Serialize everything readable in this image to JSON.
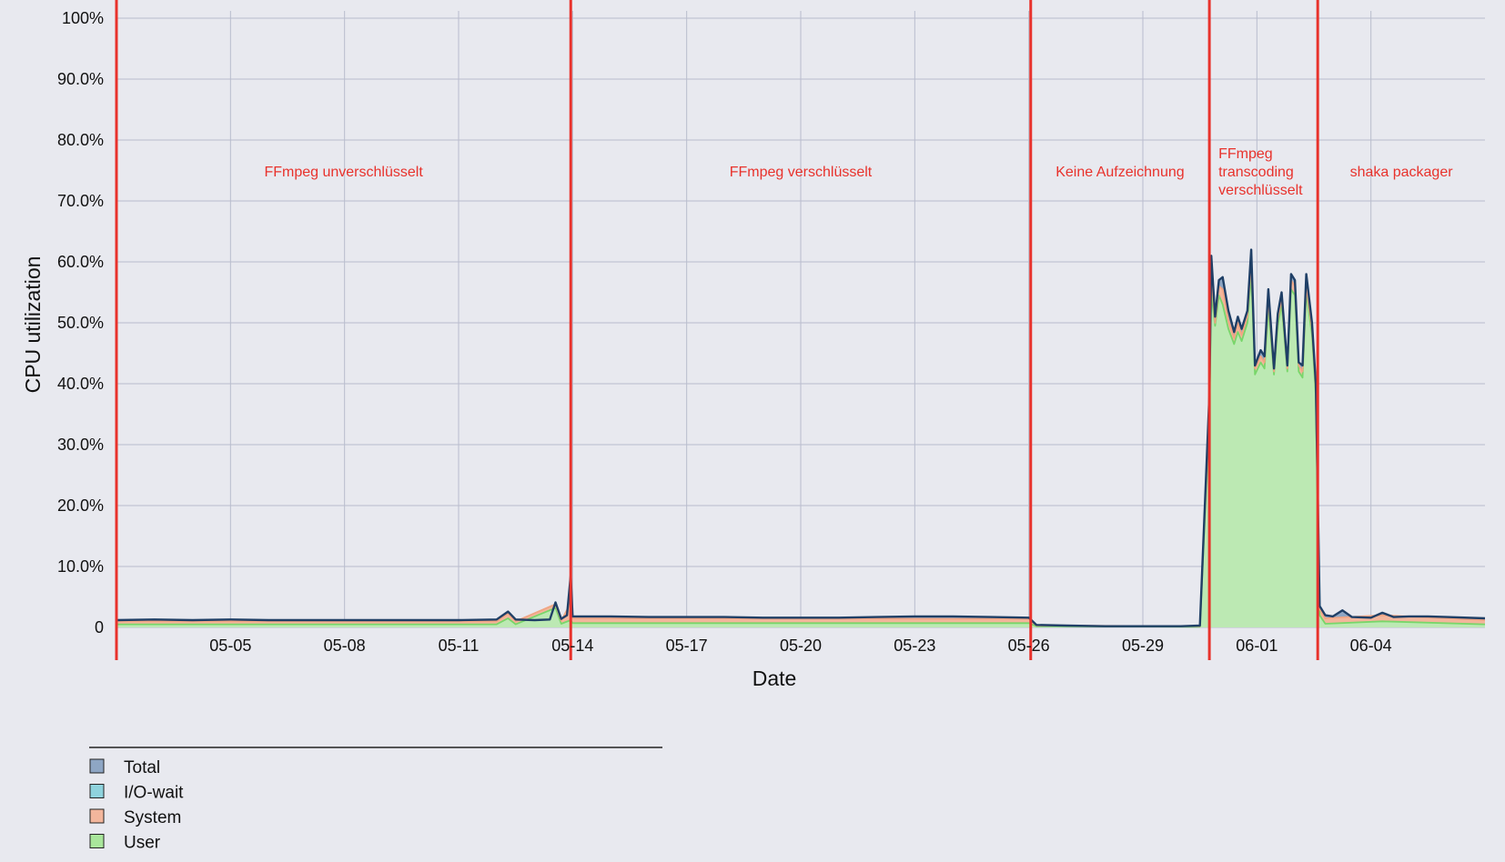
{
  "chart_data": {
    "type": "area",
    "title": "",
    "xlabel": "Date",
    "ylabel": "CPU utilization",
    "x_range": [
      "2023-05-02",
      "2023-06-07"
    ],
    "y_range": [
      0,
      100
    ],
    "y_ticks": [
      {
        "value": 0,
        "label": "0"
      },
      {
        "value": 10,
        "label": "10.0%"
      },
      {
        "value": 20,
        "label": "20.0%"
      },
      {
        "value": 30,
        "label": "30.0%"
      },
      {
        "value": 40,
        "label": "40.0%"
      },
      {
        "value": 50,
        "label": "50.0%"
      },
      {
        "value": 60,
        "label": "60.0%"
      },
      {
        "value": 70,
        "label": "70.0%"
      },
      {
        "value": 80,
        "label": "80.0%"
      },
      {
        "value": 90,
        "label": "90.0%"
      },
      {
        "value": 100,
        "label": "100%"
      }
    ],
    "x_ticks": [
      {
        "date": "2023-05-05",
        "label": "05-05"
      },
      {
        "date": "2023-05-08",
        "label": "05-08"
      },
      {
        "date": "2023-05-11",
        "label": "05-11"
      },
      {
        "date": "2023-05-14",
        "label": "05-14"
      },
      {
        "date": "2023-05-17",
        "label": "05-17"
      },
      {
        "date": "2023-05-20",
        "label": "05-20"
      },
      {
        "date": "2023-05-23",
        "label": "05-23"
      },
      {
        "date": "2023-05-26",
        "label": "05-26"
      },
      {
        "date": "2023-05-29",
        "label": "05-29"
      },
      {
        "date": "2023-06-01",
        "label": "06-01"
      },
      {
        "date": "2023-06-04",
        "label": "06-04"
      }
    ],
    "grid": true,
    "legend_position": "bottom-left",
    "series": [
      {
        "name": "Total",
        "color": "#1f3f66",
        "swatch": "#8ea6c4",
        "points": [
          [
            "2023-05-02",
            1.2
          ],
          [
            "2023-05-03",
            1.3
          ],
          [
            "2023-05-04",
            1.2
          ],
          [
            "2023-05-05",
            1.3
          ],
          [
            "2023-05-06",
            1.2
          ],
          [
            "2023-05-07",
            1.2
          ],
          [
            "2023-05-08",
            1.2
          ],
          [
            "2023-05-09",
            1.2
          ],
          [
            "2023-05-10",
            1.2
          ],
          [
            "2023-05-11",
            1.2
          ],
          [
            "2023-05-12",
            1.3
          ],
          [
            "2023-05-12.3",
            2.6
          ],
          [
            "2023-05-12.5",
            1.3
          ],
          [
            "2023-05-13",
            1.2
          ],
          [
            "2023-05-13.4",
            1.3
          ],
          [
            "2023-05-13.55",
            4.1
          ],
          [
            "2023-05-13.7",
            1.4
          ],
          [
            "2023-05-13.85",
            2.0
          ],
          [
            "2023-05-13.95",
            8.5
          ],
          [
            "2023-05-14",
            1.8
          ],
          [
            "2023-05-15",
            1.8
          ],
          [
            "2023-05-16",
            1.7
          ],
          [
            "2023-05-17",
            1.7
          ],
          [
            "2023-05-18",
            1.7
          ],
          [
            "2023-05-19",
            1.6
          ],
          [
            "2023-05-20",
            1.6
          ],
          [
            "2023-05-21",
            1.6
          ],
          [
            "2023-05-22",
            1.7
          ],
          [
            "2023-05-23",
            1.8
          ],
          [
            "2023-05-24",
            1.8
          ],
          [
            "2023-05-25",
            1.7
          ],
          [
            "2023-05-26",
            1.6
          ],
          [
            "2023-05-26.2",
            0.4
          ],
          [
            "2023-05-27",
            0.3
          ],
          [
            "2023-05-28",
            0.2
          ],
          [
            "2023-05-29",
            0.2
          ],
          [
            "2023-05-30",
            0.2
          ],
          [
            "2023-05-30.5",
            0.3
          ],
          [
            "2023-05-30.75",
            38.0
          ],
          [
            "2023-05-30.8",
            61.0
          ],
          [
            "2023-05-30.9",
            51.0
          ],
          [
            "2023-05-31",
            57.0
          ],
          [
            "2023-05-31.1",
            57.5
          ],
          [
            "2023-05-31.25",
            52.0
          ],
          [
            "2023-05-31.4",
            48.5
          ],
          [
            "2023-05-31.5",
            51.0
          ],
          [
            "2023-05-31.6",
            49.0
          ],
          [
            "2023-05-31.75",
            52.0
          ],
          [
            "2023-05-31.85",
            62.0
          ],
          [
            "2023-05-31.95",
            43.0
          ],
          [
            "2023-06-01.1",
            45.5
          ],
          [
            "2023-06-01.2",
            44.5
          ],
          [
            "2023-06-01.3",
            55.5
          ],
          [
            "2023-06-01.45",
            42.5
          ],
          [
            "2023-06-01.55",
            51.5
          ],
          [
            "2023-06-01.65",
            55.0
          ],
          [
            "2023-06-01.8",
            43.0
          ],
          [
            "2023-06-01.9",
            58.0
          ],
          [
            "2023-06-02",
            57.0
          ],
          [
            "2023-06-02.1",
            43.5
          ],
          [
            "2023-06-02.2",
            43.0
          ],
          [
            "2023-06-02.3",
            58.0
          ],
          [
            "2023-06-02.45",
            50.0
          ],
          [
            "2023-06-02.55",
            40.0
          ],
          [
            "2023-06-02.6",
            22.0
          ],
          [
            "2023-06-02.65",
            3.5
          ],
          [
            "2023-06-02.8",
            2.0
          ],
          [
            "2023-06-03",
            1.8
          ],
          [
            "2023-06-03.25",
            2.8
          ],
          [
            "2023-06-03.5",
            1.7
          ],
          [
            "2023-06-04",
            1.6
          ],
          [
            "2023-06-04.3",
            2.4
          ],
          [
            "2023-06-04.6",
            1.7
          ],
          [
            "2023-06-05",
            1.8
          ],
          [
            "2023-06-05.5",
            1.8
          ],
          [
            "2023-06-06",
            1.7
          ],
          [
            "2023-06-07",
            1.5
          ]
        ]
      },
      {
        "name": "I/O-wait",
        "color": "#66c8d6",
        "swatch": "#8fd3dd",
        "points": []
      },
      {
        "name": "System",
        "color": "#f0a583",
        "swatch": "#f3b69c",
        "points": [
          [
            "2023-05-02",
            1.0
          ],
          [
            "2023-05-12",
            1.0
          ],
          [
            "2023-05-12.3",
            2.3
          ],
          [
            "2023-05-12.5",
            1.0
          ],
          [
            "2023-05-13.55",
            3.8
          ],
          [
            "2023-05-13.7",
            1.1
          ],
          [
            "2023-05-13.95",
            4.0
          ],
          [
            "2023-05-14",
            1.5
          ],
          [
            "2023-05-26",
            1.4
          ],
          [
            "2023-05-26.2",
            0.3
          ],
          [
            "2023-05-30.5",
            0.2
          ],
          [
            "2023-05-30.75",
            36.0
          ],
          [
            "2023-05-30.8",
            58.0
          ],
          [
            "2023-05-30.9",
            50.0
          ],
          [
            "2023-05-31",
            56.0
          ],
          [
            "2023-05-31.1",
            55.5
          ],
          [
            "2023-05-31.25",
            50.5
          ],
          [
            "2023-05-31.4",
            47.5
          ],
          [
            "2023-05-31.5",
            50.0
          ],
          [
            "2023-05-31.6",
            48.0
          ],
          [
            "2023-05-31.75",
            51.0
          ],
          [
            "2023-05-31.85",
            60.0
          ],
          [
            "2023-05-31.95",
            42.5
          ],
          [
            "2023-06-01.1",
            44.5
          ],
          [
            "2023-06-01.2",
            43.5
          ],
          [
            "2023-06-01.3",
            54.0
          ],
          [
            "2023-06-01.45",
            42.0
          ],
          [
            "2023-06-01.55",
            50.5
          ],
          [
            "2023-06-01.65",
            54.0
          ],
          [
            "2023-06-01.8",
            42.5
          ],
          [
            "2023-06-01.9",
            57.0
          ],
          [
            "2023-06-02",
            56.0
          ],
          [
            "2023-06-02.1",
            43.0
          ],
          [
            "2023-06-02.2",
            42.0
          ],
          [
            "2023-06-02.3",
            56.0
          ],
          [
            "2023-06-02.45",
            49.0
          ],
          [
            "2023-06-02.55",
            39.0
          ],
          [
            "2023-06-02.6",
            20.0
          ],
          [
            "2023-06-02.65",
            3.0
          ],
          [
            "2023-06-02.8",
            1.5
          ],
          [
            "2023-06-04.3",
            2.0
          ],
          [
            "2023-06-07",
            1.2
          ]
        ]
      },
      {
        "name": "User",
        "color": "#78d66a",
        "fill": "#bce9b3",
        "swatch": "#a9e69b",
        "points": [
          [
            "2023-05-02",
            0.5
          ],
          [
            "2023-05-12",
            0.5
          ],
          [
            "2023-05-12.3",
            1.5
          ],
          [
            "2023-05-12.5",
            0.5
          ],
          [
            "2023-05-13.55",
            3.2
          ],
          [
            "2023-05-13.7",
            0.6
          ],
          [
            "2023-05-13.95",
            1.2
          ],
          [
            "2023-05-14",
            0.7
          ],
          [
            "2023-05-26",
            0.7
          ],
          [
            "2023-05-26.2",
            0.2
          ],
          [
            "2023-05-30.5",
            0.1
          ],
          [
            "2023-05-30.75",
            34.0
          ],
          [
            "2023-05-30.8",
            55.0
          ],
          [
            "2023-05-30.9",
            49.5
          ],
          [
            "2023-05-31",
            54.5
          ],
          [
            "2023-05-31.1",
            53.0
          ],
          [
            "2023-05-31.25",
            49.0
          ],
          [
            "2023-05-31.4",
            46.5
          ],
          [
            "2023-05-31.5",
            48.5
          ],
          [
            "2023-05-31.6",
            47.0
          ],
          [
            "2023-05-31.75",
            50.0
          ],
          [
            "2023-05-31.85",
            58.0
          ],
          [
            "2023-05-31.95",
            41.5
          ],
          [
            "2023-06-01.1",
            43.5
          ],
          [
            "2023-06-01.2",
            42.5
          ],
          [
            "2023-06-01.3",
            52.5
          ],
          [
            "2023-06-01.45",
            41.5
          ],
          [
            "2023-06-01.55",
            49.5
          ],
          [
            "2023-06-01.65",
            53.0
          ],
          [
            "2023-06-01.8",
            42.0
          ],
          [
            "2023-06-01.9",
            55.5
          ],
          [
            "2023-06-02",
            54.5
          ],
          [
            "2023-06-02.1",
            42.0
          ],
          [
            "2023-06-02.2",
            41.0
          ],
          [
            "2023-06-02.3",
            55.0
          ],
          [
            "2023-06-02.45",
            48.0
          ],
          [
            "2023-06-02.55",
            38.0
          ],
          [
            "2023-06-02.6",
            18.0
          ],
          [
            "2023-06-02.65",
            2.0
          ],
          [
            "2023-06-02.8",
            0.6
          ],
          [
            "2023-06-04.3",
            1.0
          ],
          [
            "2023-06-07",
            0.5
          ]
        ]
      }
    ],
    "phases": [
      {
        "start": "2023-05-02",
        "end": "2023-05-13.95",
        "label_lines": [
          "FFmpeg unverschlüsselt"
        ]
      },
      {
        "start": "2023-05-13.95",
        "end": "2023-05-26.05",
        "label_lines": [
          "FFmpeg verschlüsselt"
        ]
      },
      {
        "start": "2023-05-26.05",
        "end": "2023-05-30.75",
        "label_lines": [
          "Keine Aufzeichnung"
        ]
      },
      {
        "start": "2023-05-30.75",
        "end": "2023-06-02.6",
        "label_lines": [
          "FFmpeg",
          "transcoding",
          "verschlüsselt"
        ]
      },
      {
        "start": "2023-06-02.6",
        "end": "2023-06-07",
        "label_lines": [
          "shaka packager"
        ]
      }
    ],
    "phase_boundaries": [
      "2023-05-02",
      "2023-05-13.95",
      "2023-05-26.05",
      "2023-05-30.75",
      "2023-06-02.6"
    ]
  }
}
